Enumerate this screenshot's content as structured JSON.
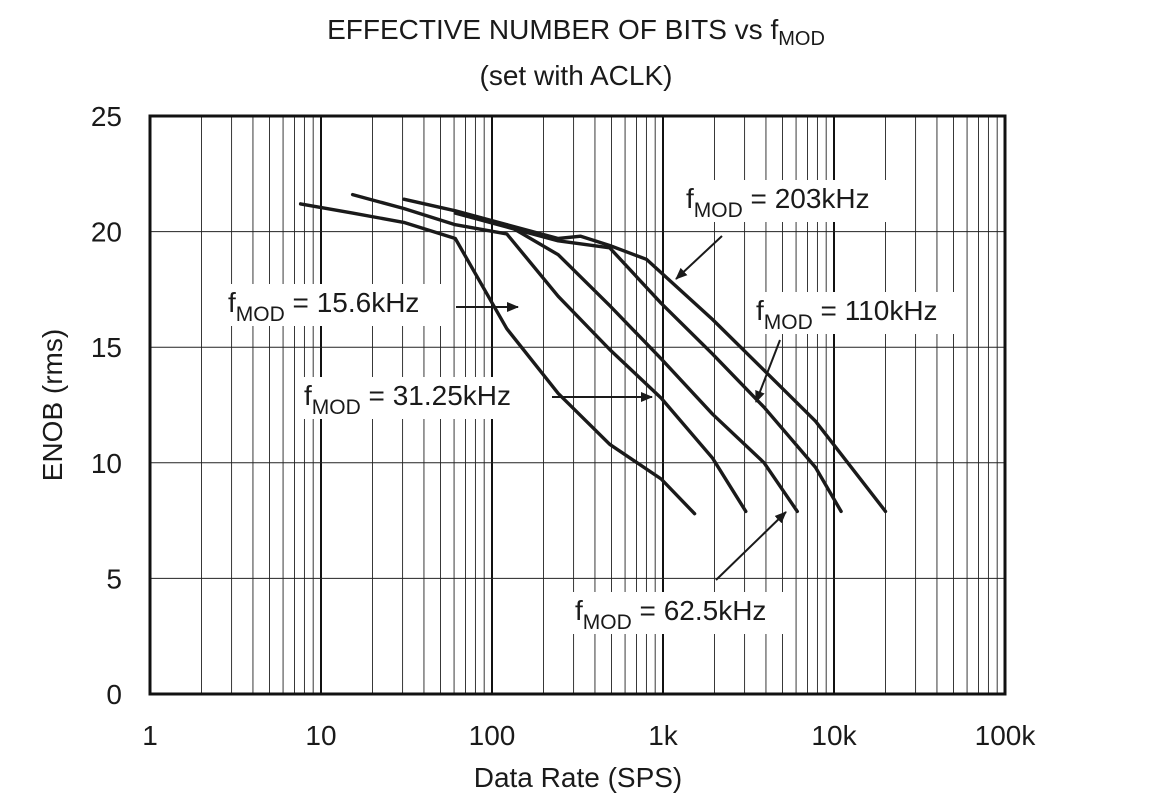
{
  "title": {
    "line1_prefix": "EFFECTIVE NUMBER OF BITS vs f",
    "line1_sub": "MOD",
    "line2": "(set with ACLK)"
  },
  "chart_data": {
    "type": "line",
    "xlabel": "Data Rate (SPS)",
    "ylabel": "ENOB (rms)",
    "xscale": "log",
    "xlim": [
      1,
      100000
    ],
    "ylim": [
      0,
      25
    ],
    "xticks": [
      1,
      10,
      100,
      1000,
      10000,
      100000
    ],
    "xtick_labels": [
      "1",
      "10",
      "100",
      "1k",
      "10k",
      "100k"
    ],
    "yticks": [
      0,
      5,
      10,
      15,
      20,
      25
    ],
    "ytick_labels": [
      "0",
      "5",
      "10",
      "15",
      "20",
      "25"
    ],
    "grid": true,
    "legend": "inline annotations with arrows",
    "series": [
      {
        "name": "fMOD = 15.6kHz",
        "label_prefix": "f",
        "label_sub": "MOD",
        "label_suffix": " = 15.6kHz",
        "x": [
          7.6,
          15.3,
          30.5,
          61,
          122,
          244,
          488,
          976,
          1530
        ],
        "y": [
          21.2,
          20.8,
          20.4,
          19.7,
          15.8,
          13.0,
          10.8,
          9.3,
          7.8
        ]
      },
      {
        "name": "fMOD = 31.25kHz",
        "label_prefix": "f",
        "label_sub": "MOD",
        "label_suffix": " = 31.25kHz",
        "x": [
          15.3,
          30.5,
          61,
          122,
          244,
          488,
          976,
          1950,
          3050
        ],
        "y": [
          21.6,
          21.0,
          20.3,
          19.9,
          17.2,
          14.9,
          12.8,
          10.2,
          7.9
        ]
      },
      {
        "name": "fMOD = 62.5kHz",
        "label_prefix": "f",
        "label_sub": "MOD",
        "label_suffix": " = 62.5kHz",
        "x": [
          30.5,
          61,
          122,
          244,
          488,
          976,
          1950,
          3900,
          6100
        ],
        "y": [
          21.4,
          20.9,
          20.3,
          19.0,
          16.8,
          14.5,
          12.1,
          10.0,
          7.9
        ]
      },
      {
        "name": "fMOD = 110kHz",
        "label_prefix": "f",
        "label_sub": "MOD",
        "label_suffix": " = 110kHz",
        "x": [
          61,
          122,
          244,
          488,
          976,
          1950,
          3900,
          7800,
          11000
        ],
        "y": [
          20.8,
          20.2,
          19.6,
          19.3,
          16.9,
          14.7,
          12.4,
          9.8,
          7.9
        ]
      },
      {
        "name": "fMOD = 203kHz",
        "label_prefix": "f",
        "label_sub": "MOD",
        "label_suffix": " = 203kHz",
        "x": [
          122,
          244,
          330,
          488,
          800,
          1950,
          3900,
          7800,
          20000
        ],
        "y": [
          20.3,
          19.7,
          19.8,
          19.4,
          18.8,
          16.2,
          14.0,
          11.8,
          7.9
        ]
      }
    ]
  }
}
